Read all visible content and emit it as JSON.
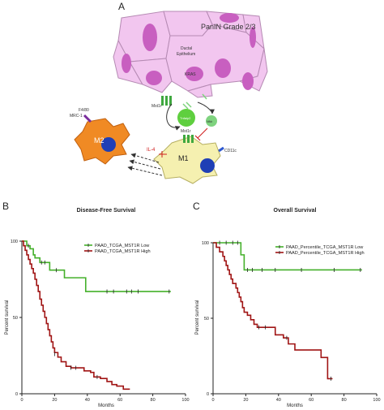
{
  "panels": {
    "a": "A",
    "b": "B",
    "c": "C"
  },
  "diagram": {
    "title": "PanIN Grade 2/3",
    "ductal_line1": "Ductal",
    "ductal_line2": "Epithelium",
    "kras": "KRAS",
    "mst1r_top": "Mst1r",
    "mst1r_bottom": "Mst1r",
    "center_cell": "Tnfaip2",
    "right_cell": "Nfkb",
    "f480": "F4/80",
    "mrc1": "MRC-1",
    "il4": "IL-4",
    "cd11c": "CD11c",
    "m2": "M2",
    "m1": "M1",
    "colors": {
      "epithelium": "#f2c6ef",
      "epithelium_edge": "#b58ab3",
      "nucleus": "#c85fc0",
      "m2": "#f08a24",
      "m1": "#f5f0b0",
      "nucleus_blue": "#1f3fb5",
      "receptor": "#3fa83f",
      "ligand": "#7fd37f",
      "inhibit": "#d02020"
    }
  },
  "chart_data": [
    {
      "type": "line",
      "title": "Disease-Free Survival",
      "xlabel": "Months",
      "ylabel": "Percent survival",
      "xlim": [
        0,
        100
      ],
      "ylim": [
        0,
        100
      ],
      "xticks": [
        0,
        20,
        40,
        60,
        80,
        100
      ],
      "yticks": [
        0,
        50,
        100
      ],
      "legend_position": "top-right",
      "series": [
        {
          "name": "PAAD_TCGA_MST1R Low",
          "color": "#44b02a",
          "points": [
            [
              0,
              100
            ],
            [
              2,
              100
            ],
            [
              3,
              97
            ],
            [
              5,
              95
            ],
            [
              7,
              91
            ],
            [
              8,
              89
            ],
            [
              11,
              86
            ],
            [
              17,
              86
            ],
            [
              17,
              81
            ],
            [
              26,
              81
            ],
            [
              26,
              76
            ],
            [
              39,
              76
            ],
            [
              39,
              67
            ],
            [
              91,
              67
            ]
          ],
          "censors": [
            [
              4,
              97
            ],
            [
              12,
              86
            ],
            [
              14,
              86
            ],
            [
              21,
              81
            ],
            [
              52,
              67
            ],
            [
              56,
              67
            ],
            [
              64,
              67
            ],
            [
              67,
              67
            ],
            [
              71,
              67
            ],
            [
              90,
              67
            ]
          ]
        },
        {
          "name": "PAAD_TCGA_MST1R High",
          "color": "#a01414",
          "points": [
            [
              0,
              100
            ],
            [
              1,
              97
            ],
            [
              2,
              94
            ],
            [
              3,
              91
            ],
            [
              4,
              88
            ],
            [
              5,
              85
            ],
            [
              6,
              82
            ],
            [
              7,
              79
            ],
            [
              8,
              75
            ],
            [
              9,
              71
            ],
            [
              10,
              67
            ],
            [
              11,
              62
            ],
            [
              12,
              58
            ],
            [
              13,
              54
            ],
            [
              14,
              50
            ],
            [
              15,
              46
            ],
            [
              16,
              42
            ],
            [
              17,
              38
            ],
            [
              18,
              34
            ],
            [
              19,
              30
            ],
            [
              20,
              27
            ],
            [
              22,
              24
            ],
            [
              24,
              21
            ],
            [
              27,
              18
            ],
            [
              30,
              17
            ],
            [
              35,
              17
            ],
            [
              38,
              15
            ],
            [
              42,
              14
            ],
            [
              44,
              11
            ],
            [
              48,
              10
            ],
            [
              52,
              8
            ],
            [
              55,
              6
            ],
            [
              58,
              5
            ],
            [
              62,
              3
            ],
            [
              66,
              3
            ]
          ],
          "censors": [
            [
              20,
              26
            ],
            [
              30,
              17
            ],
            [
              33,
              17
            ],
            [
              46,
              11
            ]
          ]
        }
      ]
    },
    {
      "type": "line",
      "title": "Overall Survival",
      "xlabel": "Months",
      "ylabel": "Percent survival",
      "xlim": [
        0,
        100
      ],
      "ylim": [
        0,
        100
      ],
      "xticks": [
        0,
        20,
        40,
        60,
        80,
        100
      ],
      "yticks": [
        0,
        50,
        100
      ],
      "legend_position": "top-right",
      "series": [
        {
          "name": "PAAD_Percentile_TCGA_MST1R Low",
          "color": "#44b02a",
          "points": [
            [
              0,
              100
            ],
            [
              17,
              100
            ],
            [
              17,
              92
            ],
            [
              19,
              92
            ],
            [
              19,
              82
            ],
            [
              91,
              82
            ]
          ],
          "censors": [
            [
              4,
              100
            ],
            [
              8,
              100
            ],
            [
              12,
              100
            ],
            [
              15,
              100
            ],
            [
              21,
              82
            ],
            [
              24,
              82
            ],
            [
              30,
              82
            ],
            [
              38,
              82
            ],
            [
              54,
              82
            ],
            [
              74,
              82
            ],
            [
              90,
              82
            ]
          ]
        },
        {
          "name": "PAAD_Percentile_TCGA_MST1R High",
          "color": "#a01414",
          "points": [
            [
              0,
              100
            ],
            [
              2,
              97
            ],
            [
              4,
              94
            ],
            [
              6,
              91
            ],
            [
              7,
              88
            ],
            [
              8,
              85
            ],
            [
              9,
              82
            ],
            [
              10,
              79
            ],
            [
              11,
              76
            ],
            [
              12,
              73
            ],
            [
              14,
              70
            ],
            [
              15,
              67
            ],
            [
              16,
              64
            ],
            [
              17,
              61
            ],
            [
              18,
              57
            ],
            [
              19,
              54
            ],
            [
              21,
              52
            ],
            [
              23,
              49
            ],
            [
              25,
              46
            ],
            [
              27,
              44
            ],
            [
              37,
              44
            ],
            [
              38,
              39
            ],
            [
              43,
              37
            ],
            [
              46,
              33
            ],
            [
              50,
              29
            ],
            [
              66,
              29
            ],
            [
              66,
              24
            ],
            [
              70,
              17
            ],
            [
              70,
              10
            ],
            [
              73,
              10
            ]
          ],
          "censors": [
            [
              28,
              44
            ],
            [
              32,
              44
            ],
            [
              45,
              37
            ],
            [
              72,
              10
            ]
          ]
        }
      ]
    }
  ]
}
